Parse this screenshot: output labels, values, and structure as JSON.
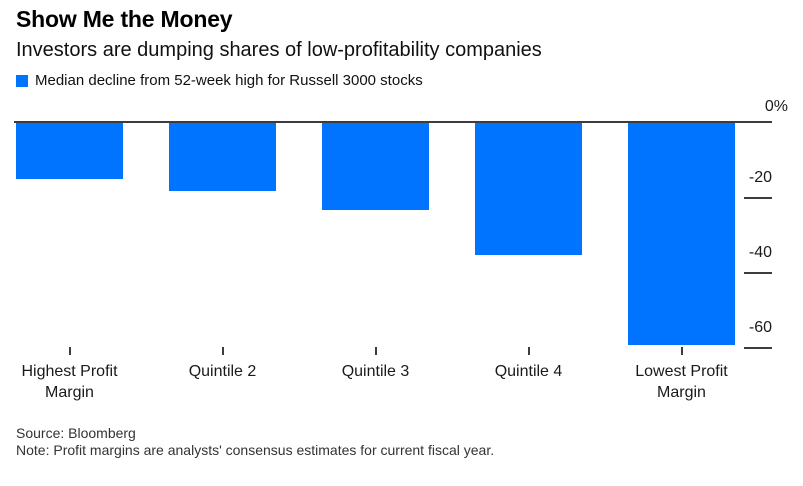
{
  "header": {
    "title": "Show Me the Money",
    "subtitle": "Investors are dumping shares of low-profitability companies"
  },
  "legend": {
    "label": "Median decline from 52-week high for Russell 3000 stocks",
    "swatch_color": "#0073ff"
  },
  "chart_data": {
    "type": "bar",
    "title": "Show Me the Money",
    "subtitle": "Investors are dumping shares of low-profitability companies",
    "series_label": "Median decline from 52-week high for Russell 3000 stocks",
    "categories": [
      "Highest Profit Margin",
      "Quintile 2",
      "Quintile 3",
      "Quintile 4",
      "Lowest Profit Margin"
    ],
    "values": [
      -15,
      -18,
      -23,
      -35,
      -59
    ],
    "unit": "%",
    "bar_color": "#0073ff",
    "ylim": [
      -65,
      0
    ],
    "yticks": [
      {
        "value": 0,
        "label": "0%"
      },
      {
        "value": -20,
        "label": "-20"
      },
      {
        "value": -40,
        "label": "-40"
      },
      {
        "value": -60,
        "label": "-60"
      }
    ],
    "axis_side": "right",
    "grid": "zero-line-only",
    "legend_position": "top-left"
  },
  "footer": {
    "source": "Source: Bloomberg",
    "note": "Note: Profit margins are analysts' consensus estimates for current fiscal year."
  }
}
